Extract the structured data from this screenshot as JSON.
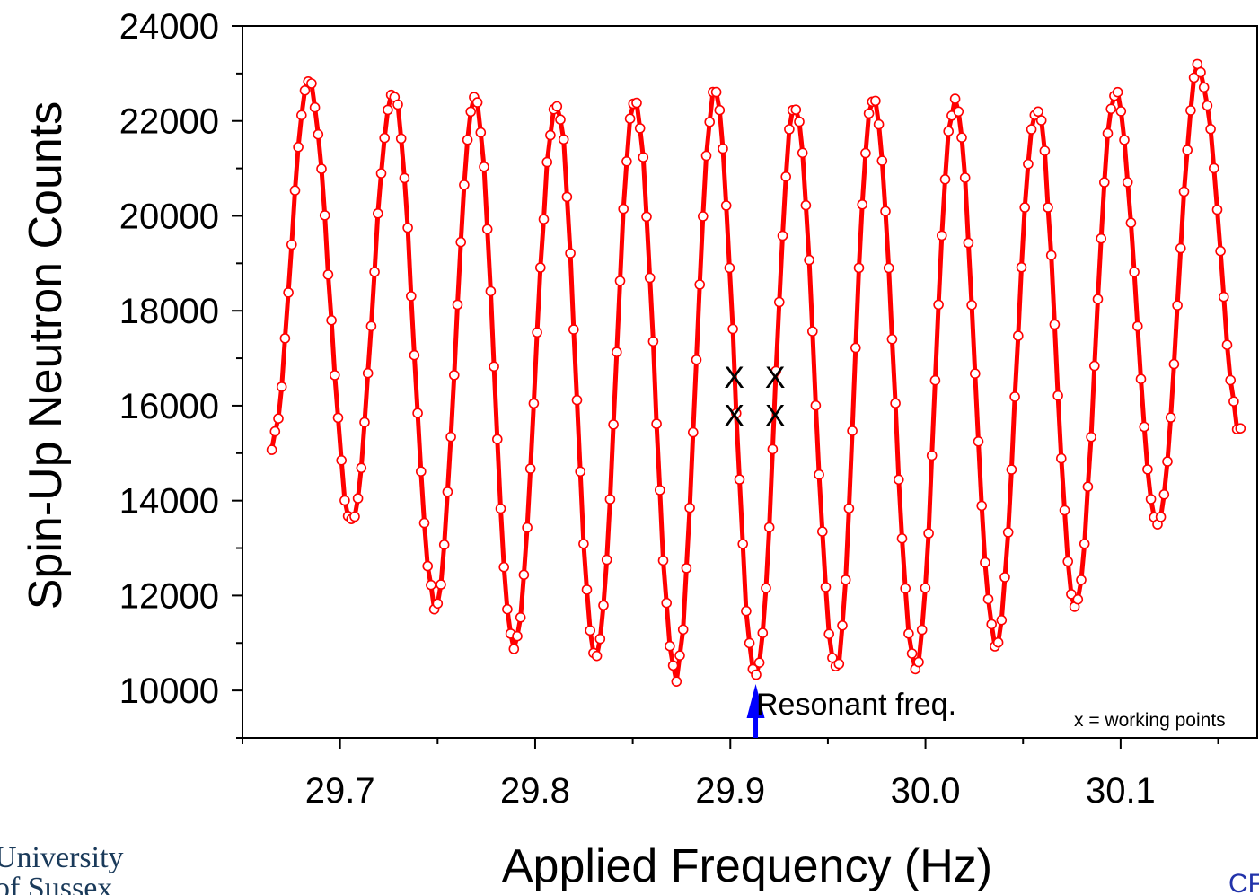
{
  "chart_data": {
    "type": "scatter",
    "xlabel": "Applied Frequency (Hz)",
    "ylabel": "Spin-Up Neutron Counts",
    "xlim": [
      29.65,
      30.17
    ],
    "ylim": [
      9000,
      24000
    ],
    "x_ticks": [
      "29.7",
      "29.8",
      "29.9",
      "30.0",
      "30.1"
    ],
    "x_tick_values": [
      29.7,
      29.8,
      29.9,
      30.0,
      30.1
    ],
    "y_ticks": [
      "10000",
      "12000",
      "14000",
      "16000",
      "18000",
      "20000",
      "22000",
      "24000"
    ],
    "y_tick_values": [
      10000,
      12000,
      14000,
      16000,
      18000,
      20000,
      22000,
      24000
    ],
    "grid": false,
    "series": [
      {
        "style": "open red circles joined by a red line",
        "x_range": [
          29.665,
          30.162
        ],
        "oscillation_period_hz": 0.0415,
        "peaks": [
          {
            "x": 29.684,
            "y": 22800
          },
          {
            "x": 29.727,
            "y": 22600
          },
          {
            "x": 29.769,
            "y": 22500
          },
          {
            "x": 29.811,
            "y": 22400
          },
          {
            "x": 29.851,
            "y": 22400
          },
          {
            "x": 29.892,
            "y": 22600
          },
          {
            "x": 29.933,
            "y": 22300
          },
          {
            "x": 29.973,
            "y": 22500
          },
          {
            "x": 30.015,
            "y": 22400
          },
          {
            "x": 30.057,
            "y": 22300
          },
          {
            "x": 30.097,
            "y": 22600
          },
          {
            "x": 30.14,
            "y": 23100
          }
        ],
        "troughs": [
          {
            "x": 29.706,
            "y": 13500
          },
          {
            "x": 29.749,
            "y": 11800
          },
          {
            "x": 29.789,
            "y": 10900
          },
          {
            "x": 29.831,
            "y": 10600
          },
          {
            "x": 29.872,
            "y": 10300
          },
          {
            "x": 29.913,
            "y": 10200
          },
          {
            "x": 29.954,
            "y": 10400
          },
          {
            "x": 29.995,
            "y": 10500
          },
          {
            "x": 30.036,
            "y": 11000
          },
          {
            "x": 30.077,
            "y": 11800
          },
          {
            "x": 30.119,
            "y": 13500
          }
        ],
        "start": {
          "x": 29.665,
          "y": 15200
        },
        "end": {
          "x": 30.162,
          "y": 15400
        }
      }
    ],
    "working_points": [
      {
        "x": 29.902,
        "y": 16600
      },
      {
        "x": 29.902,
        "y": 15800
      },
      {
        "x": 29.923,
        "y": 16600
      },
      {
        "x": 29.923,
        "y": 15800
      }
    ],
    "resonant_frequency": 29.913,
    "annotations": {
      "resonant": "Resonant freq.",
      "legend_note": "x = working points",
      "x_marker": "X"
    },
    "colors": {
      "data": "#ff0000",
      "arrow": "#0000ff",
      "axes": "#000000"
    }
  },
  "logo": {
    "line1": "University",
    "line2": "of Sussex"
  },
  "corner_text": "CF"
}
